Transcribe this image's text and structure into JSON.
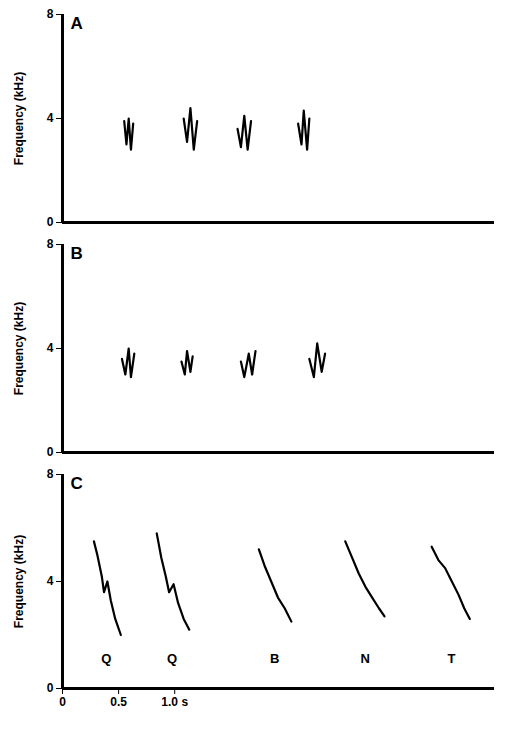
{
  "chart_data": [
    {
      "type": "line",
      "title": "A",
      "y_label": "Frequency (kHz)",
      "color": "#000000",
      "xlim": [
        0,
        3.85
      ],
      "ylim": [
        0,
        8
      ],
      "yticks": [
        0,
        4,
        8
      ],
      "tick_labels": "y",
      "notes": [
        {
          "x": [
            0.55,
            0.57,
            0.59,
            0.61,
            0.63
          ],
          "values": [
            3.9,
            3.0,
            4.0,
            2.8,
            3.8
          ]
        },
        {
          "x": [
            1.08,
            1.11,
            1.14,
            1.17,
            1.2
          ],
          "values": [
            4.0,
            3.1,
            4.4,
            2.8,
            3.9
          ]
        },
        {
          "x": [
            1.56,
            1.59,
            1.62,
            1.65,
            1.68
          ],
          "values": [
            3.6,
            2.9,
            4.1,
            2.8,
            3.9
          ]
        },
        {
          "x": [
            2.1,
            2.13,
            2.15,
            2.18,
            2.2
          ],
          "values": [
            3.8,
            3.0,
            4.3,
            2.8,
            4.0
          ]
        }
      ]
    },
    {
      "type": "line",
      "title": "B",
      "y_label": "Frequency (kHz)",
      "color": "#000000",
      "xlim": [
        0,
        3.85
      ],
      "ylim": [
        0,
        8
      ],
      "yticks": [
        0,
        4,
        8
      ],
      "tick_labels": "y",
      "notes": [
        {
          "x": [
            0.53,
            0.56,
            0.59,
            0.61,
            0.64
          ],
          "values": [
            3.6,
            3.0,
            4.0,
            2.9,
            3.8
          ]
        },
        {
          "x": [
            1.06,
            1.09,
            1.11,
            1.14,
            1.16
          ],
          "values": [
            3.5,
            3.0,
            3.9,
            3.1,
            3.7
          ]
        },
        {
          "x": [
            1.59,
            1.62,
            1.66,
            1.69,
            1.72
          ],
          "values": [
            3.5,
            2.9,
            3.8,
            3.0,
            3.9
          ]
        },
        {
          "x": [
            2.2,
            2.24,
            2.27,
            2.31,
            2.34
          ],
          "values": [
            3.6,
            2.9,
            4.2,
            3.1,
            3.8
          ]
        }
      ]
    },
    {
      "type": "line",
      "title": "C",
      "y_label": "Frequency (kHz)",
      "color": "#000000",
      "xlim": [
        0,
        3.85
      ],
      "ylim": [
        0,
        8
      ],
      "yticks": [
        0,
        4,
        8
      ],
      "xticks": [
        0,
        0.5,
        {
          "value": 1,
          "label": "1.0 s"
        }
      ],
      "notes": [
        {
          "label": "Q",
          "x": [
            0.28,
            0.31,
            0.35,
            0.37,
            0.4,
            0.43,
            0.47,
            0.52
          ],
          "values": [
            5.5,
            5.0,
            4.2,
            3.6,
            4.0,
            3.3,
            2.6,
            2.0
          ]
        },
        {
          "label": "Q",
          "x": [
            0.84,
            0.88,
            0.92,
            0.95,
            0.99,
            1.03,
            1.08,
            1.13
          ],
          "values": [
            5.8,
            4.9,
            4.2,
            3.6,
            3.9,
            3.2,
            2.6,
            2.2
          ]
        },
        {
          "label": "B",
          "x": [
            1.75,
            1.8,
            1.86,
            1.92,
            1.98,
            2.04
          ],
          "values": [
            5.2,
            4.6,
            4.0,
            3.4,
            3.0,
            2.5
          ]
        },
        {
          "label": "N",
          "x": [
            2.52,
            2.58,
            2.64,
            2.7,
            2.76,
            2.82,
            2.87
          ],
          "values": [
            5.5,
            4.9,
            4.3,
            3.8,
            3.4,
            3.0,
            2.7
          ]
        },
        {
          "label": "T",
          "x": [
            3.29,
            3.35,
            3.41,
            3.47,
            3.53,
            3.58,
            3.63
          ],
          "values": [
            5.3,
            4.8,
            4.5,
            4.0,
            3.5,
            3.0,
            2.6
          ]
        }
      ]
    }
  ]
}
